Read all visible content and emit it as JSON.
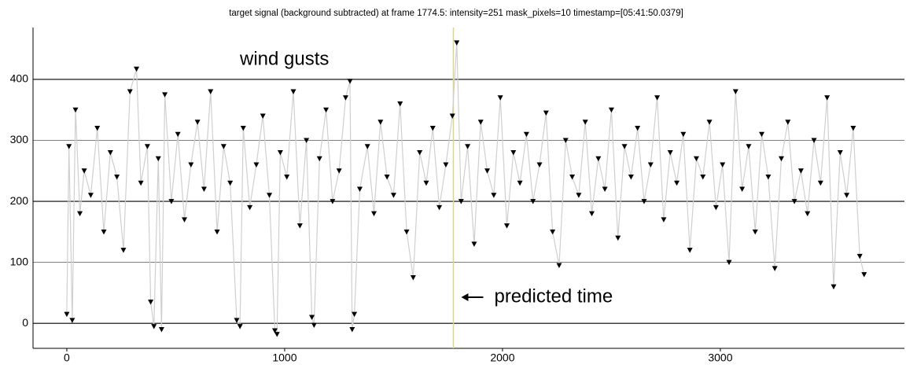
{
  "chart_data": {
    "type": "scatter",
    "title": "target signal (background subtracted) at frame 1774.5: intensity=251 mask_pixels=10 timestamp=[05:41:50.0379]",
    "annotations": [
      "wind gusts",
      "predicted time"
    ],
    "predicted_time_x": 1774.5,
    "predicted_time_color": "#d9d59a",
    "x": [
      0,
      10,
      25,
      40,
      60,
      80,
      110,
      140,
      170,
      200,
      230,
      260,
      290,
      320,
      340,
      370,
      385,
      400,
      420,
      435,
      450,
      480,
      510,
      540,
      570,
      600,
      630,
      660,
      690,
      720,
      750,
      780,
      795,
      810,
      840,
      870,
      900,
      930,
      955,
      965,
      980,
      1010,
      1040,
      1070,
      1100,
      1125,
      1135,
      1160,
      1190,
      1220,
      1250,
      1280,
      1300,
      1310,
      1320,
      1345,
      1380,
      1410,
      1440,
      1470,
      1500,
      1530,
      1560,
      1590,
      1620,
      1650,
      1680,
      1710,
      1740,
      1770,
      1790,
      1810,
      1840,
      1870,
      1900,
      1930,
      1960,
      1990,
      2020,
      2050,
      2080,
      2110,
      2140,
      2170,
      2200,
      2230,
      2260,
      2290,
      2320,
      2350,
      2380,
      2410,
      2440,
      2470,
      2500,
      2530,
      2560,
      2590,
      2620,
      2650,
      2680,
      2710,
      2740,
      2770,
      2800,
      2830,
      2860,
      2890,
      2920,
      2950,
      2980,
      3010,
      3040,
      3070,
      3100,
      3130,
      3160,
      3190,
      3220,
      3250,
      3280,
      3310,
      3340,
      3370,
      3400,
      3430,
      3460,
      3490,
      3520,
      3550,
      3580,
      3610,
      3640,
      3660
    ],
    "series": [
      {
        "color": "#000000",
        "line_color": "#cfcfcf",
        "values": [
          15,
          290,
          5,
          350,
          180,
          250,
          210,
          320,
          150,
          280,
          240,
          120,
          380,
          417,
          230,
          290,
          35,
          -5,
          270,
          -10,
          375,
          200,
          310,
          170,
          260,
          330,
          220,
          380,
          150,
          290,
          230,
          5,
          -5,
          320,
          190,
          260,
          340,
          210,
          -12,
          -18,
          280,
          240,
          380,
          160,
          300,
          10,
          -3,
          270,
          350,
          200,
          250,
          370,
          397,
          -10,
          15,
          220,
          290,
          180,
          330,
          240,
          210,
          360,
          150,
          75,
          280,
          230,
          320,
          190,
          260,
          340,
          460,
          200,
          290,
          130,
          330,
          250,
          210,
          370,
          160,
          280,
          230,
          310,
          200,
          260,
          345,
          150,
          95,
          300,
          240,
          210,
          330,
          180,
          270,
          220,
          350,
          140,
          290,
          240,
          320,
          200,
          260,
          370,
          170,
          280,
          230,
          310,
          120,
          270,
          240,
          330,
          190,
          260,
          100,
          380,
          220,
          290,
          150,
          310,
          240,
          90,
          270,
          330,
          200,
          250,
          180,
          300,
          230,
          370,
          60,
          280,
          210,
          320,
          110,
          80
        ]
      }
    ],
    "xlim": [
      -155,
      3845
    ],
    "ylim": [
      -41,
      485
    ],
    "xticks": [
      0,
      1000,
      2000,
      3000
    ],
    "yticks": [
      0,
      100,
      200,
      300,
      400
    ],
    "grid": true
  }
}
